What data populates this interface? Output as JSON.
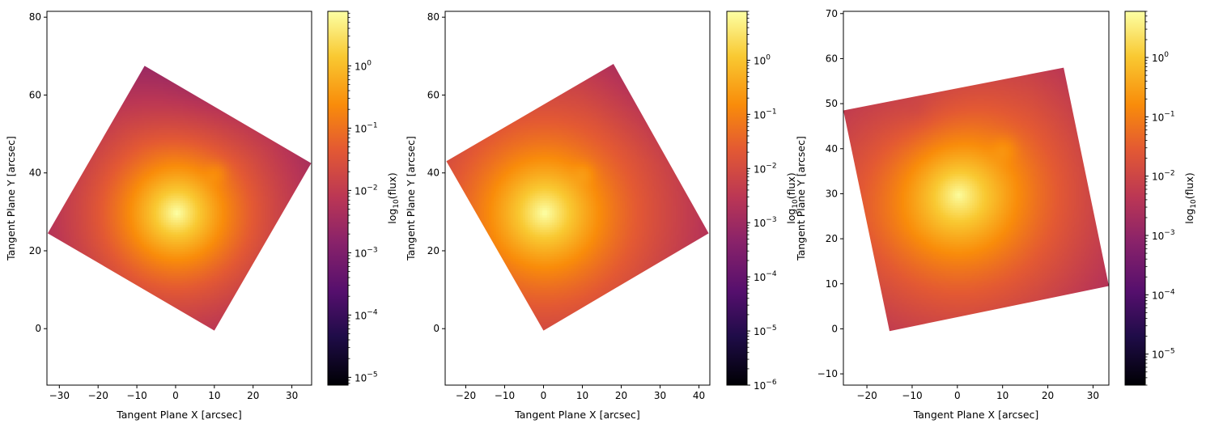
{
  "chart_data": [
    {
      "type": "heatmap",
      "title": "",
      "xlabel": "Tangent Plane X [arcsec]",
      "ylabel": "Tangent Plane Y [arcsec]",
      "xlim": [
        -33.2,
        35.1
      ],
      "ylim": [
        -14.5,
        81.5
      ],
      "xticks": [
        -30,
        -20,
        -10,
        0,
        10,
        20,
        30
      ],
      "yticks": [
        0,
        20,
        40,
        60,
        80
      ],
      "colorbar": {
        "label": "log10(flux)",
        "scale": "log",
        "range": [
          7.5e-06,
          7.5
        ],
        "ticks": [
          {
            "value": 1e-05,
            "label": "10^-5"
          },
          {
            "value": 0.0001,
            "label": "10^-4"
          },
          {
            "value": 0.001,
            "label": "10^-3"
          },
          {
            "value": 0.01,
            "label": "10^-2"
          },
          {
            "value": 0.1,
            "label": "10^-1"
          },
          {
            "value": 1,
            "label": "10^0"
          }
        ]
      },
      "footprint": [
        [
          -8,
          67.5
        ],
        [
          35,
          42.5
        ],
        [
          10,
          -0.5
        ],
        [
          -33,
          24.5
        ]
      ],
      "sources": [
        {
          "x": 0,
          "y": 30,
          "peak_flux": 7.5,
          "description": "primary source"
        },
        {
          "x": 10,
          "y": 40,
          "peak_flux": 0.1,
          "description": "secondary source"
        }
      ],
      "colormap": "inferno"
    },
    {
      "type": "heatmap",
      "title": "",
      "xlabel": "Tangent Plane X [arcsec]",
      "ylabel": "Tangent Plane Y [arcsec]",
      "xlim": [
        -25.3,
        42.8
      ],
      "ylim": [
        -14.5,
        81.5
      ],
      "xticks": [
        -20,
        -10,
        0,
        10,
        20,
        30,
        40
      ],
      "yticks": [
        0,
        20,
        40,
        60,
        80
      ],
      "colorbar": {
        "label": "log10(flux)",
        "scale": "log",
        "range": [
          1e-06,
          8
        ],
        "ticks": [
          {
            "value": 1e-06,
            "label": "10^-6"
          },
          {
            "value": 1e-05,
            "label": "10^-5"
          },
          {
            "value": 0.0001,
            "label": "10^-4"
          },
          {
            "value": 0.001,
            "label": "10^-3"
          },
          {
            "value": 0.01,
            "label": "10^-2"
          },
          {
            "value": 0.1,
            "label": "10^-1"
          },
          {
            "value": 1,
            "label": "10^0"
          }
        ]
      },
      "footprint": [
        [
          18,
          68
        ],
        [
          42.5,
          24.5
        ],
        [
          0,
          -0.5
        ],
        [
          -25,
          43
        ]
      ],
      "sources": [
        {
          "x": 0,
          "y": 30,
          "peak_flux": 8,
          "description": "primary source"
        },
        {
          "x": 10,
          "y": 40,
          "peak_flux": 0.1,
          "description": "secondary source"
        }
      ],
      "colormap": "inferno"
    },
    {
      "type": "heatmap",
      "title": "",
      "xlabel": "Tangent Plane X [arcsec]",
      "ylabel": "Tangent Plane Y [arcsec]",
      "xlim": [
        -25.2,
        33.5
      ],
      "ylim": [
        -12.5,
        70.5
      ],
      "xticks": [
        -20,
        -10,
        0,
        10,
        20,
        30
      ],
      "yticks": [
        -10,
        0,
        10,
        20,
        30,
        40,
        50,
        60,
        70
      ],
      "colorbar": {
        "label": "log10(flux)",
        "scale": "log",
        "range": [
          3e-06,
          6
        ],
        "ticks": [
          {
            "value": 1e-05,
            "label": "10^-5"
          },
          {
            "value": 0.0001,
            "label": "10^-4"
          },
          {
            "value": 0.001,
            "label": "10^-3"
          },
          {
            "value": 0.01,
            "label": "10^-2"
          },
          {
            "value": 0.1,
            "label": "10^-1"
          },
          {
            "value": 1,
            "label": "10^0"
          }
        ]
      },
      "footprint": [
        [
          -25.2,
          48.5
        ],
        [
          23.5,
          58
        ],
        [
          33.5,
          9.5
        ],
        [
          -15,
          -0.5
        ]
      ],
      "sources": [
        {
          "x": 0,
          "y": 30,
          "peak_flux": 6,
          "description": "primary source"
        },
        {
          "x": 10,
          "y": 40,
          "peak_flux": 0.1,
          "description": "secondary source"
        }
      ],
      "colormap": "inferno"
    }
  ]
}
